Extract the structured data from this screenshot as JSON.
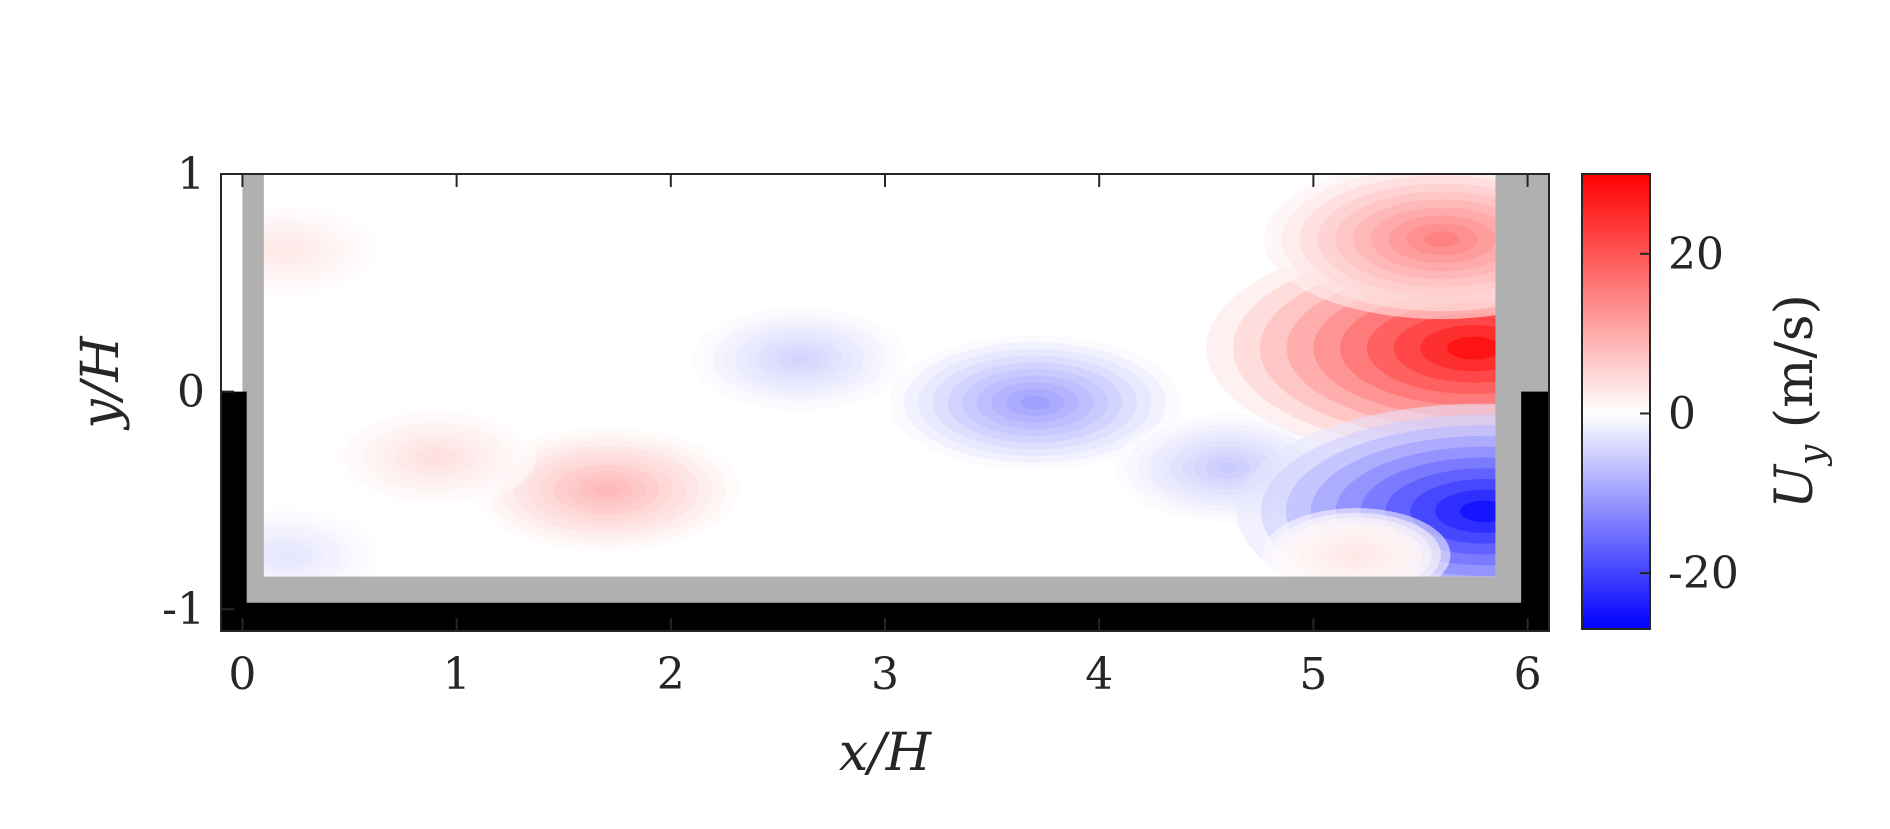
{
  "chart_data": {
    "type": "heatmap",
    "title": "",
    "xlabel": "x/H",
    "ylabel": "y/H",
    "xlim": [
      -0.1,
      6.1
    ],
    "ylim": [
      -1.1,
      1.0
    ],
    "x_ticks": [
      0,
      1,
      2,
      3,
      4,
      5,
      6
    ],
    "x_tick_labels": [
      "0",
      "1",
      "2",
      "3",
      "4",
      "5",
      "6"
    ],
    "y_ticks": [
      1,
      0,
      -1
    ],
    "y_tick_labels": [
      "1",
      "0",
      "-1"
    ],
    "grid": false,
    "colorbar": {
      "label": "U_y (m/s)",
      "label_main": "U",
      "label_sub": "y",
      "label_units": " (m/s)",
      "range": [
        -27,
        30
      ],
      "ticks": [
        20,
        0,
        -20
      ],
      "tick_labels": [
        "20",
        "0",
        "-20"
      ],
      "colormap": [
        "#0000ff",
        "#ffffff",
        "#ff0000"
      ]
    },
    "field": {
      "extent_x": [
        0.1,
        5.85
      ],
      "extent_y": [
        -0.85,
        1.0
      ],
      "blobs": [
        {
          "x": 1.7,
          "y": -0.45,
          "value": 9
        },
        {
          "x": 0.9,
          "y": -0.3,
          "value": 4
        },
        {
          "x": 3.7,
          "y": -0.05,
          "value": -11
        },
        {
          "x": 2.6,
          "y": 0.15,
          "value": -5
        },
        {
          "x": 4.6,
          "y": -0.35,
          "value": -6
        },
        {
          "x": 5.75,
          "y": 0.2,
          "value": 30
        },
        {
          "x": 5.6,
          "y": 0.7,
          "value": 16
        },
        {
          "x": 5.8,
          "y": -0.55,
          "value": -27
        },
        {
          "x": 5.2,
          "y": -0.75,
          "value": 3
        },
        {
          "x": 0.2,
          "y": 0.65,
          "value": 3
        },
        {
          "x": 0.2,
          "y": -0.75,
          "value": -3
        }
      ]
    },
    "walls": [
      {
        "name": "left-wall",
        "fill": "#b0b0b0",
        "x": [
          0.0,
          0.1
        ],
        "y": [
          -0.97,
          1.0
        ]
      },
      {
        "name": "bottom-wall",
        "fill": "#b0b0b0",
        "x": [
          0.0,
          5.85
        ],
        "y": [
          -0.97,
          -0.85
        ]
      },
      {
        "name": "right-wall",
        "fill": "#b0b0b0",
        "x": [
          5.85,
          6.1
        ],
        "y": [
          -0.97,
          1.0
        ]
      },
      {
        "name": "left-block",
        "fill": "#000000",
        "x": [
          -0.1,
          0.02
        ],
        "y": [
          -1.1,
          0.0
        ]
      },
      {
        "name": "bottom-block",
        "fill": "#000000",
        "x": [
          -0.1,
          6.1
        ],
        "y": [
          -1.1,
          -0.97
        ]
      },
      {
        "name": "right-block",
        "fill": "#000000",
        "x": [
          5.97,
          6.1
        ],
        "y": [
          -1.1,
          0.0
        ]
      }
    ]
  }
}
